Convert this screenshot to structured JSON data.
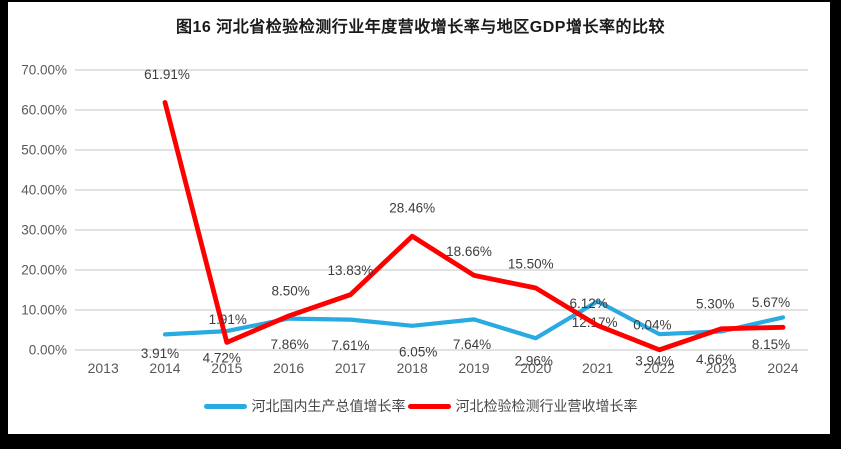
{
  "title": "图16 河北省检验检测行业年度营收增长率与地区GDP增长率的比较",
  "colors": {
    "background": "#FFFFFF",
    "frame": "#000000",
    "gridline": "#D9D9D9",
    "axis_text": "#595959",
    "data_label_text": "#3D3D3D",
    "gdp_line": "#29ABE2",
    "revenue_line": "#FF0000"
  },
  "chart_data": {
    "type": "line",
    "categories": [
      "2013",
      "2014",
      "2015",
      "2016",
      "2017",
      "2018",
      "2019",
      "2020",
      "2021",
      "2022",
      "2023",
      "2024"
    ],
    "series": [
      {
        "name": "河北国内生产总值增长率",
        "color": "#29ABE2",
        "values": [
          null,
          3.91,
          4.72,
          7.86,
          7.61,
          6.05,
          7.64,
          2.96,
          12.17,
          3.94,
          4.66,
          8.15
        ]
      },
      {
        "name": "河北检验检测行业营收增长率",
        "color": "#FF0000",
        "values": [
          null,
          61.91,
          1.91,
          8.5,
          13.83,
          28.46,
          18.66,
          15.5,
          6.12,
          0.04,
          5.3,
          5.67
        ]
      }
    ],
    "data_label_format": "0.00%",
    "y_axis": {
      "min": 0,
      "max": 70,
      "step": 10,
      "ticks": [
        "0.00%",
        "10.00%",
        "20.00%",
        "30.00%",
        "40.00%",
        "50.00%",
        "60.00%",
        "70.00%"
      ]
    },
    "grid": true,
    "legend_position": "bottom"
  }
}
